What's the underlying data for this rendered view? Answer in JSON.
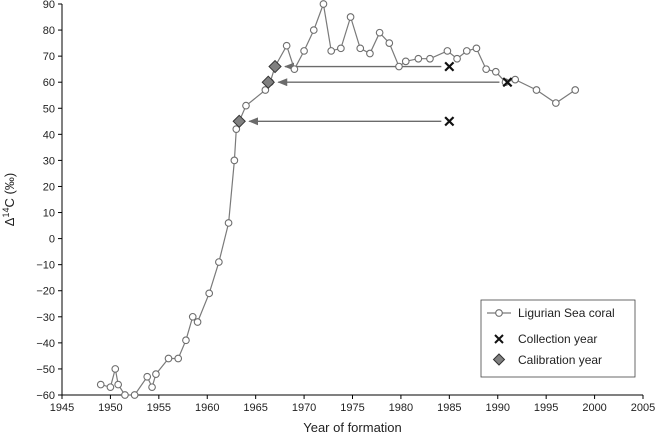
{
  "chart_data": {
    "type": "line",
    "xlabel": "Year of formation",
    "ylabel_prefix": "Δ",
    "ylabel_sup": "14",
    "ylabel_suffix": "C (‰)",
    "xlim": [
      1945,
      2005
    ],
    "ylim": [
      -60,
      90
    ],
    "x_ticks": [
      1945,
      1950,
      1955,
      1960,
      1965,
      1970,
      1975,
      1980,
      1985,
      1990,
      1995,
      2000,
      2005
    ],
    "y_ticks": [
      -60,
      -50,
      -40,
      -30,
      -20,
      -10,
      0,
      10,
      20,
      30,
      40,
      50,
      60,
      70,
      80,
      90
    ],
    "grid": false,
    "legend_position": "bottom-right",
    "legend": [
      {
        "label": "Ligurian Sea coral",
        "marker": "open-circle-line"
      },
      {
        "label": "Collection year",
        "marker": "x"
      },
      {
        "label": "Calibration year",
        "marker": "diamond"
      }
    ],
    "series": [
      {
        "name": "Ligurian Sea coral",
        "points": [
          [
            1949,
            -56
          ],
          [
            1950,
            -57
          ],
          [
            1950.5,
            -50
          ],
          [
            1950.8,
            -56
          ],
          [
            1951.5,
            -60
          ],
          [
            1952.5,
            -60
          ],
          [
            1953.8,
            -53
          ],
          [
            1954.3,
            -57
          ],
          [
            1954.7,
            -52
          ],
          [
            1956,
            -46
          ],
          [
            1957,
            -46
          ],
          [
            1957.8,
            -39
          ],
          [
            1958.5,
            -30
          ],
          [
            1959,
            -32
          ],
          [
            1960.2,
            -21
          ],
          [
            1961.2,
            -9
          ],
          [
            1962.2,
            6
          ],
          [
            1962.8,
            30
          ],
          [
            1963,
            42
          ],
          [
            1963.3,
            45
          ],
          [
            1964,
            51
          ],
          [
            1966,
            57
          ],
          [
            1966.5,
            60
          ],
          [
            1967,
            66
          ],
          [
            1968.2,
            74
          ],
          [
            1969,
            65
          ],
          [
            1970,
            72
          ],
          [
            1971,
            80
          ],
          [
            1972,
            90
          ],
          [
            1972.8,
            72
          ],
          [
            1973.8,
            73
          ],
          [
            1974.8,
            85
          ],
          [
            1975.8,
            73
          ],
          [
            1976.8,
            71
          ],
          [
            1977.8,
            79
          ],
          [
            1978.8,
            75
          ],
          [
            1979.8,
            66
          ],
          [
            1980.5,
            68
          ],
          [
            1981.8,
            69
          ],
          [
            1983,
            69
          ],
          [
            1984.8,
            72
          ],
          [
            1985.8,
            69
          ],
          [
            1986.8,
            72
          ],
          [
            1987.8,
            73
          ],
          [
            1988.8,
            65
          ],
          [
            1989.8,
            64
          ],
          [
            1990.8,
            60
          ],
          [
            1991.8,
            61
          ],
          [
            1994,
            57
          ],
          [
            1996,
            52
          ],
          [
            1998,
            57
          ]
        ]
      }
    ],
    "collection_years": [
      [
        1985,
        45
      ],
      [
        1985,
        66
      ],
      [
        1991,
        60
      ]
    ],
    "calibration_years": [
      [
        1963.3,
        45
      ],
      [
        1966.3,
        60
      ],
      [
        1967,
        66
      ]
    ],
    "arrows": [
      {
        "from": [
          1985,
          45
        ],
        "to": [
          1963.3,
          45
        ]
      },
      {
        "from": [
          1985,
          66
        ],
        "to": [
          1967,
          66
        ]
      },
      {
        "from": [
          1991,
          60
        ],
        "to": [
          1966.3,
          60
        ]
      }
    ]
  }
}
